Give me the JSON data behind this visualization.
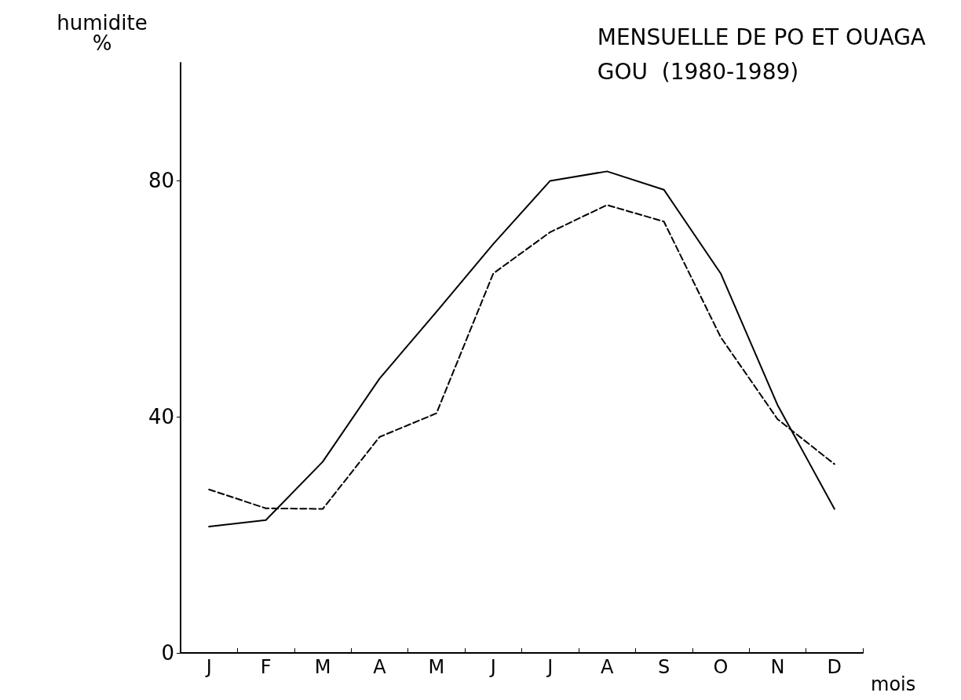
{
  "chart_data": {
    "type": "line",
    "title": "MENSUELLE DE PO ET OUAGA\nGOU  (1980-1989)",
    "ylabel": "humidite\n%",
    "xlabel": "mois",
    "categories": [
      "J",
      "F",
      "M",
      "A",
      "M",
      "J",
      "J",
      "A",
      "S",
      "O",
      "N",
      "D"
    ],
    "series": [
      {
        "color": "#000000",
        "line_style": "solid",
        "values": [
          21.4,
          22.5,
          32.4,
          46.5,
          57.8,
          69.3,
          80,
          81.6,
          78.5,
          64.3,
          42,
          24.4
        ]
      },
      {
        "color": "#000000",
        "line_style": "dashed",
        "values": [
          27.7,
          24.5,
          24.4,
          36.6,
          40.6,
          64.3,
          71.3,
          75.9,
          73.1,
          53.5,
          39.6,
          32
        ]
      }
    ],
    "ylim": [
      0,
      100
    ],
    "yticks": [
      0,
      40,
      80
    ],
    "grid": false,
    "marker": "none"
  }
}
